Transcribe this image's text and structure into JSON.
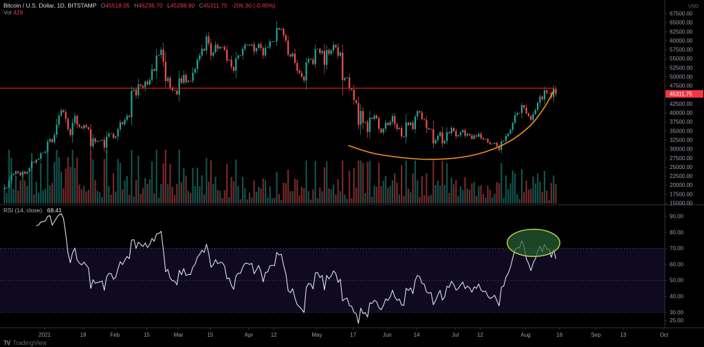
{
  "header": {
    "symbol": "Bitcoin / U.S. Dollar, 1D, BITSTAMP",
    "ohlc": {
      "o_label": "O",
      "o": "45518.05",
      "h_label": "H",
      "h": "46236.70",
      "l_label": "L",
      "l": "45288.80",
      "c_label": "C",
      "c": "45311.75",
      "change": "-206.30 (-0.45%)"
    },
    "volume_label": "Vol",
    "volume_value": "429"
  },
  "price_axis": {
    "unit": "USD",
    "ticks": [
      67500,
      65000,
      62500,
      60000,
      57500,
      55000,
      52500,
      50000,
      47500,
      42500,
      40000,
      37500,
      35000,
      32500,
      30000,
      27500,
      25000,
      22500,
      20000,
      17500,
      15000
    ],
    "last_price_label": "45311.75"
  },
  "rsi": {
    "label": "RSI (14, close)",
    "value": "68.41",
    "ticks": [
      90,
      80,
      70,
      60,
      50,
      40,
      30,
      25
    ]
  },
  "time_axis": {
    "labels": [
      {
        "label": "2021",
        "day": 18
      },
      {
        "label": "18",
        "day": 35
      },
      {
        "label": "Feb",
        "day": 49
      },
      {
        "label": "15",
        "day": 63
      },
      {
        "label": "Mar",
        "day": 77
      },
      {
        "label": "15",
        "day": 91
      },
      {
        "label": "Apr",
        "day": 108
      },
      {
        "label": "12",
        "day": 119
      },
      {
        "label": "May",
        "day": 138
      },
      {
        "label": "17",
        "day": 154
      },
      {
        "label": "Jun",
        "day": 169
      },
      {
        "label": "14",
        "day": 182
      },
      {
        "label": "Jul",
        "day": 199
      },
      {
        "label": "12",
        "day": 210
      },
      {
        "label": "Aug",
        "day": 230
      },
      {
        "label": "16",
        "day": 245
      },
      {
        "label": "Sep",
        "day": 261
      },
      {
        "label": "13",
        "day": 273
      },
      {
        "label": "Oct",
        "day": 291
      }
    ]
  },
  "footer": {
    "logo_glyph": "TV",
    "brand": "TradingView"
  },
  "colors": {
    "background": "#000000",
    "up": "#26a69a",
    "down": "#ef5350",
    "vol_up": "rgba(38,166,154,0.5)",
    "vol_down": "rgba(239,83,80,0.5)",
    "resistance": "#e32222",
    "curve": "#f7931a",
    "rsi_line": "#e0e3eb",
    "rsi_band": "rgba(124,77,255,0.13)",
    "rsi_level_line": "#9598a1",
    "ellipse_fill": "rgba(38,96,50,0.72)",
    "ellipse_stroke": "#b8cc52",
    "separator": "#2f3340",
    "axis_text": "#9b9fa8",
    "price_label_bg": "#f23645",
    "price_label_text": "#ffffff"
  },
  "chart_data": {
    "type": "candlestick",
    "symbol": "BTC/USD",
    "exchange": "BITSTAMP",
    "interval": "1D",
    "start_date": "2020-12-14",
    "end_date": "2021-08-14",
    "price_axis_range": [
      15000,
      67500
    ],
    "rsi_visible_range": [
      25,
      97
    ],
    "rsi_band": [
      30,
      70
    ],
    "rsi_levels": [
      70,
      50,
      30
    ],
    "closes": [
      19246,
      19417,
      21310,
      22805,
      23137,
      23861,
      23474,
      22803,
      23781,
      23241,
      23735,
      24712,
      26493,
      26281,
      27079,
      27385,
      28875,
      29002,
      29374,
      32127,
      32782,
      31971,
      33992,
      36824,
      39371,
      40797,
      40254,
      38356,
      35566,
      33922,
      37316,
      39187,
      36825,
      36178,
      35791,
      36630,
      36069,
      35547,
      30825,
      33005,
      32067,
      32289,
      32366,
      32569,
      30432,
      33466,
      34316,
      34269,
      33114,
      33537,
      35510,
      37472,
      36926,
      38144,
      39266,
      38903,
      46196,
      46481,
      44918,
      47909,
      47504,
      47105,
      48717,
      47945,
      49199,
      52149,
      51679,
      55888,
      56099,
      57539,
      54207,
      48824,
      49705,
      47093,
      46339,
      46188,
      45137,
      49631,
      48378,
      50538,
      48561,
      48927,
      48912,
      51206,
      52246,
      54824,
      55963,
      57805,
      57332,
      61243,
      59302,
      55907,
      56804,
      58870,
      57858,
      58346,
      58313,
      57523,
      54529,
      54738,
      52774,
      51704,
      55137,
      55973,
      55950,
      57750,
      58917,
      58919,
      58726,
      58981,
      57094,
      58020,
      59123,
      58019,
      55958,
      58083,
      58245,
      59793,
      59893,
      59843,
      63503,
      63109,
      63314,
      61572,
      60041,
      56216,
      55696,
      56473,
      53906,
      51762,
      51093,
      50050,
      49004,
      54021,
      55033,
      54846,
      53555,
      57750,
      57828,
      56631,
      57200,
      53333,
      57424,
      56396,
      57352,
      58877,
      58232,
      55847,
      56704,
      49150,
      49716,
      49880,
      46760,
      46456,
      43580,
      42804,
      36753,
      40596,
      37304,
      37531,
      34770,
      38705,
      38402,
      39294,
      38556,
      35684,
      34616,
      35678,
      37332,
      36684,
      37575,
      39208,
      36894,
      35551,
      35862,
      33589,
      33416,
      37389,
      36696,
      37338,
      35546,
      39020,
      40526,
      40158,
      38349,
      38092,
      35819,
      35483,
      35600,
      31608,
      32509,
      33678,
      34663,
      31584,
      32283,
      34700,
      34434,
      35868,
      35041,
      33572,
      33897,
      34668,
      35287,
      33746,
      34235,
      33855,
      32877,
      33798,
      33515,
      34254,
      33086,
      32729,
      32820,
      31880,
      31383,
      31520,
      31778,
      30839,
      29790,
      32144,
      32287,
      33634,
      34290,
      35400,
      37278,
      39457,
      40019,
      40016,
      42206,
      41461,
      39878,
      39201,
      38152,
      39747,
      40869,
      42820,
      44572,
      43798,
      46283,
      45593,
      45576,
      44417,
      46753,
      45312
    ],
    "overlays": {
      "resistance_line": {
        "price": 46900,
        "start_day": -1.7,
        "end_day": 242.6
      },
      "rounding_bottom": [
        [
          152,
          31000
        ],
        [
          165,
          28600
        ],
        [
          186,
          27200
        ],
        [
          205,
          28100
        ],
        [
          220,
          31200
        ],
        [
          231,
          35900
        ],
        [
          238,
          41300
        ],
        [
          242.5,
          46300
        ]
      ],
      "rsi_ellipse": {
        "center_day": 233.5,
        "center_rsi": 73.5,
        "rx_days": 11.6,
        "ry_rsi": 8.5
      }
    }
  }
}
